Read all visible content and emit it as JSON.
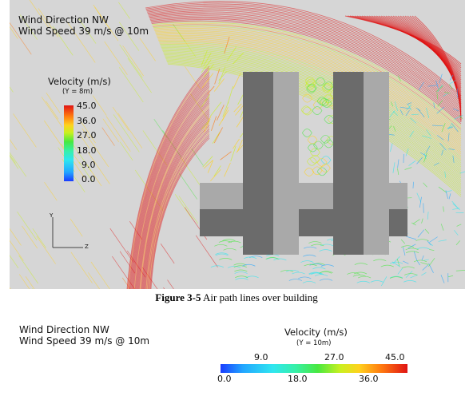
{
  "top_panel": {
    "title_line1": "Wind Direction NW",
    "title_line2": "Wind Speed 39 m/s @ 10m",
    "legend": {
      "title": "Velocity (m/s)",
      "subtitle": "(Y = 8m)",
      "ticks": [
        "45.0",
        "36.0",
        "27.0",
        "18.0",
        "9.0",
        "0.0"
      ]
    },
    "axis_labels": {
      "vertical": "Y",
      "horizontal": "Z"
    }
  },
  "caption": {
    "label": "Figure 3-5",
    "text": " Air path lines over building"
  },
  "bottom_panel": {
    "title_line1": "Wind Direction NW",
    "title_line2": "Wind Speed 39 m/s @ 10m",
    "legend": {
      "title": "Velocity (m/s)",
      "subtitle": "(Y = 10m)",
      "ticks_top": [
        "9.0",
        "27.0",
        "45.0"
      ],
      "ticks_bottom": [
        "0.0",
        "18.0",
        "36.0"
      ]
    }
  },
  "colors": {
    "background": "#d6d6d6",
    "building_dark": "#6b6b6b",
    "building_light": "#a9a9a9",
    "velocity_high": "#e01414",
    "velocity_low": "#1a3cff"
  }
}
